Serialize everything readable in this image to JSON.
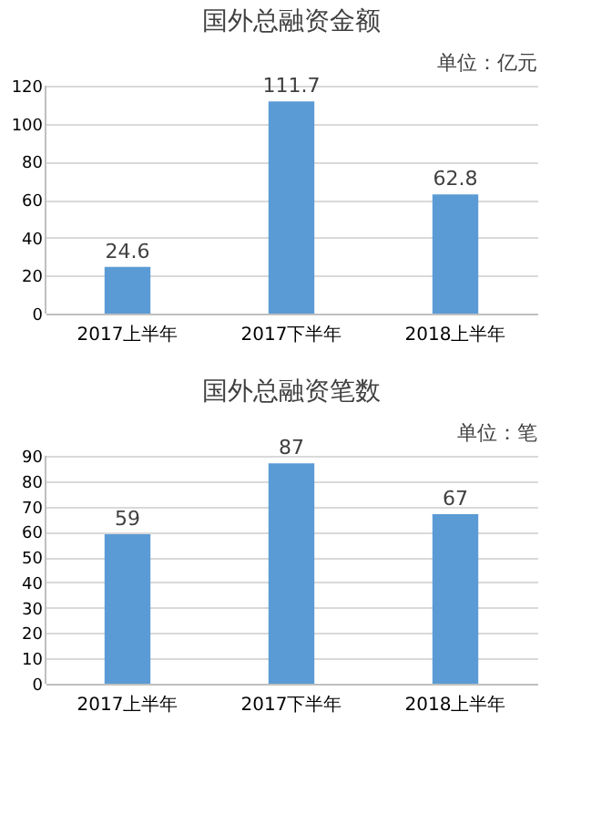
{
  "chart_data": [
    {
      "type": "bar",
      "title": "国外总融资金额",
      "annotations": [
        "单位：亿元"
      ],
      "categories": [
        "2017上半年",
        "2017下半年",
        "2018上半年"
      ],
      "values": [
        24.6,
        111.7,
        62.8
      ],
      "color": "#5b9bd5",
      "ylim": [
        0,
        120
      ],
      "yticks": [
        0,
        20,
        40,
        60,
        80,
        100,
        120
      ],
      "grid": "y",
      "data_labels": true
    },
    {
      "type": "bar",
      "title": "国外总融资笔数",
      "annotations": [
        "单位：笔"
      ],
      "categories": [
        "2017上半年",
        "2017下半年",
        "2018上半年"
      ],
      "values": [
        59,
        87,
        67
      ],
      "color": "#5b9bd5",
      "ylim": [
        0,
        90
      ],
      "yticks": [
        0,
        10,
        20,
        30,
        40,
        50,
        60,
        70,
        80,
        90
      ],
      "grid": "y",
      "data_labels": true
    }
  ]
}
